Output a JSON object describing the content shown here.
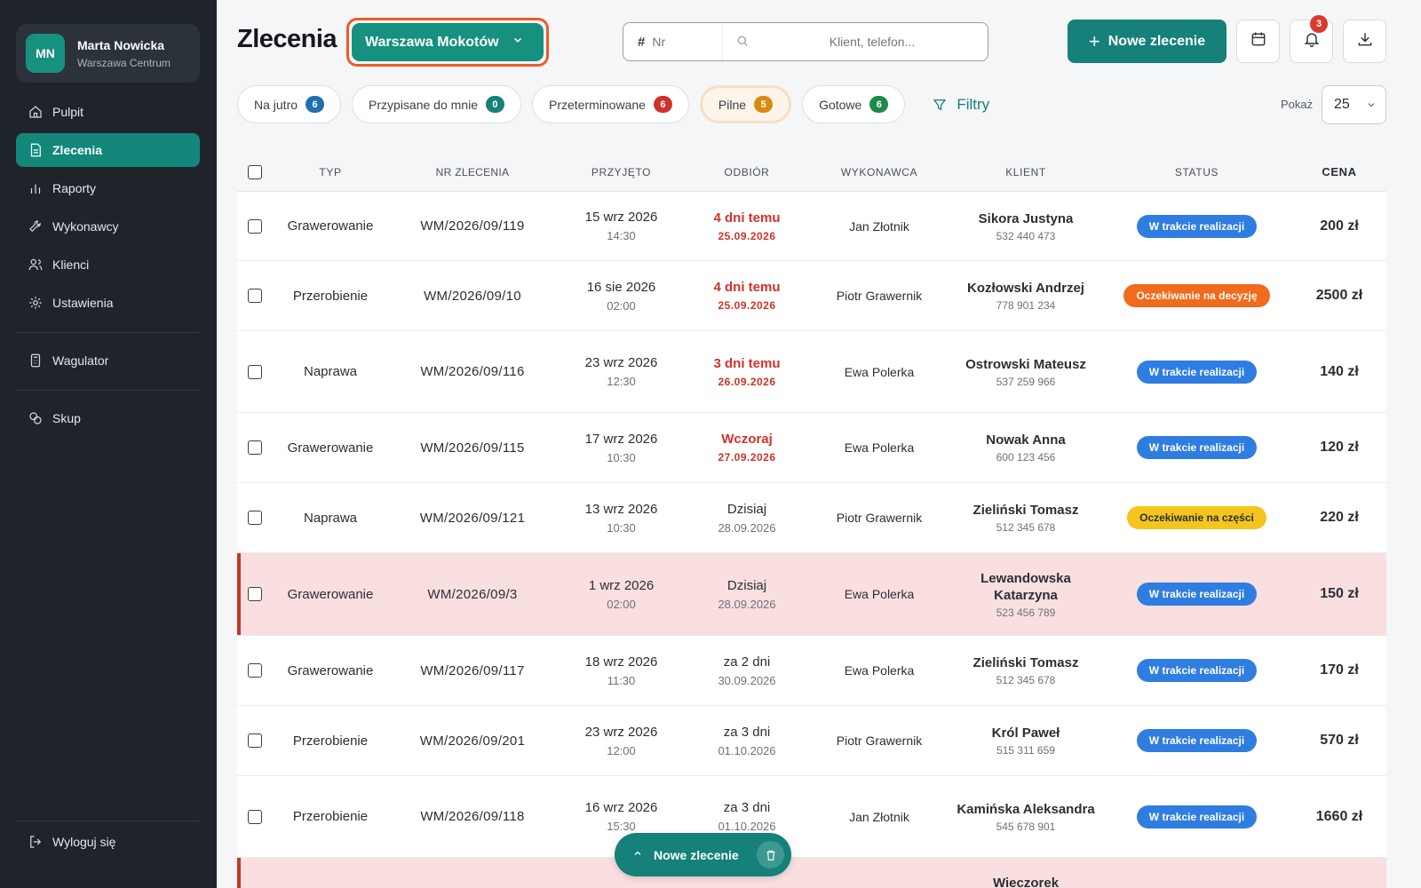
{
  "user": {
    "initials": "MN",
    "name": "Marta Nowicka",
    "branch": "Warszawa Centrum"
  },
  "nav": [
    {
      "label": "Pulpit",
      "icon": "home-icon",
      "active": false
    },
    {
      "label": "Zlecenia",
      "icon": "document-icon",
      "active": true
    },
    {
      "label": "Raporty",
      "icon": "bar-chart-icon",
      "active": false
    },
    {
      "label": "Wykonawcy",
      "icon": "wrench-icon",
      "active": false
    },
    {
      "label": "Klienci",
      "icon": "users-icon",
      "active": false
    },
    {
      "label": "Ustawienia",
      "icon": "gear-icon",
      "active": false
    }
  ],
  "nav_extra": [
    {
      "label": "Wagulator",
      "icon": "calculator-icon"
    },
    {
      "label": "Skup",
      "icon": "coins-icon"
    }
  ],
  "logout_label": "Wyloguj się",
  "header": {
    "title": "Zlecenia",
    "branch_select": "Warszawa Mokotów",
    "search_nr_symbol": "#",
    "search_nr_placeholder": "Nr",
    "search_client_placeholder": "Klient, telefon...",
    "new_order_label": "Nowe zlecenie",
    "notifications_count": "3"
  },
  "chips": [
    {
      "label": "Na jutro",
      "count": "6",
      "color": "#1f6fb2",
      "active": false
    },
    {
      "label": "Przypisane do mnie",
      "count": "0",
      "color": "#16807a",
      "active": false
    },
    {
      "label": "Przeterminowane",
      "count": "6",
      "color": "#d0322a",
      "active": false
    },
    {
      "label": "Pilne",
      "count": "5",
      "color": "#d98a12",
      "active": true
    },
    {
      "label": "Gotowe",
      "count": "6",
      "color": "#1d8a4a",
      "active": false
    }
  ],
  "filters_label": "Filtry",
  "show_label": "Pokaż",
  "show_value": "25",
  "table": {
    "columns": {
      "type": "TYP",
      "nr": "NR ZLECENIA",
      "received": "PRZYJĘTO",
      "pickup": "ODBIÓR",
      "executor": "WYKONAWCA",
      "client": "KLIENT",
      "status": "STATUS",
      "price": "CENA"
    },
    "rows": [
      {
        "type": "Grawerowanie",
        "nr": "WM/2026/09/119",
        "rec_date": "15 wrz 2026",
        "rec_time": "14:30",
        "pick_main": "4 dni temu",
        "pick_date": "25.09.2026",
        "late": true,
        "executor": "Jan Złotnik",
        "client": "Sikora Justyna",
        "phone": "532 440 473",
        "status": "W trakcie realizacji",
        "status_color": "#2f7de1",
        "price": "200 zł",
        "highlight": false,
        "height": 78
      },
      {
        "type": "Przerobienie",
        "nr": "WM/2026/09/10",
        "rec_date": "16 sie 2026",
        "rec_time": "02:00",
        "pick_main": "4 dni temu",
        "pick_date": "25.09.2026",
        "late": true,
        "executor": "Piotr Grawernik",
        "client": "Kozłowski Andrzej",
        "phone": "778 901 234",
        "status": "Oczekiwanie na decyzję",
        "status_color": "#f26a1b",
        "price": "2500 zł",
        "highlight": false,
        "height": 79
      },
      {
        "type": "Naprawa",
        "nr": "WM/2026/09/116",
        "rec_date": "23 wrz 2026",
        "rec_time": "12:30",
        "pick_main": "3 dni temu",
        "pick_date": "26.09.2026",
        "late": true,
        "executor": "Ewa Polerka",
        "client": "Ostrowski Mateusz",
        "phone": "537 259 966",
        "status": "W trakcie realizacji",
        "status_color": "#2f7de1",
        "price": "140 zł",
        "highlight": false,
        "height": 92
      },
      {
        "type": "Grawerowanie",
        "nr": "WM/2026/09/115",
        "rec_date": "17 wrz 2026",
        "rec_time": "10:30",
        "pick_main": "Wczoraj",
        "pick_date": "27.09.2026",
        "late": true,
        "executor": "Ewa Polerka",
        "client": "Nowak Anna",
        "phone": "600 123 456",
        "status": "W trakcie realizacji",
        "status_color": "#2f7de1",
        "price": "120 zł",
        "highlight": false,
        "height": 79
      },
      {
        "type": "Naprawa",
        "nr": "WM/2026/09/121",
        "rec_date": "13 wrz 2026",
        "rec_time": "10:30",
        "pick_main": "Dzisiaj",
        "pick_date": "28.09.2026",
        "late": false,
        "executor": "Piotr Grawernik",
        "client": "Zieliński Tomasz",
        "phone": "512 345 678",
        "status": "Oczekiwanie na części",
        "status_color": "#f4c51c",
        "status_text_color": "#2a2f35",
        "price": "220 zł",
        "highlight": false,
        "height": 79
      },
      {
        "type": "Grawerowanie",
        "nr": "WM/2026/09/3",
        "rec_date": "1 wrz 2026",
        "rec_time": "02:00",
        "pick_main": "Dzisiaj",
        "pick_date": "28.09.2026",
        "late": false,
        "executor": "Ewa Polerka",
        "client": "Lewandowska Katarzyna",
        "phone": "523 456 789",
        "status": "W trakcie realizacji",
        "status_color": "#2f7de1",
        "price": "150 zł",
        "highlight": true,
        "height": 93
      },
      {
        "type": "Grawerowanie",
        "nr": "WM/2026/09/117",
        "rec_date": "18 wrz 2026",
        "rec_time": "11:30",
        "pick_main": "za 2 dni",
        "pick_date": "30.09.2026",
        "late": false,
        "executor": "Ewa Polerka",
        "client": "Zieliński Tomasz",
        "phone": "512 345 678",
        "status": "W trakcie realizacji",
        "status_color": "#2f7de1",
        "price": "170 zł",
        "highlight": false,
        "height": 79
      },
      {
        "type": "Przerobienie",
        "nr": "WM/2026/09/201",
        "rec_date": "23 wrz 2026",
        "rec_time": "12:00",
        "pick_main": "za 3 dni",
        "pick_date": "01.10.2026",
        "late": false,
        "executor": "Piotr Grawernik",
        "client": "Król Paweł",
        "phone": "515 311 659",
        "status": "W trakcie realizacji",
        "status_color": "#2f7de1",
        "price": "570 zł",
        "highlight": false,
        "height": 79
      },
      {
        "type": "Przerobienie",
        "nr": "WM/2026/09/118",
        "rec_date": "16 wrz 2026",
        "rec_time": "15:30",
        "pick_main": "za 3 dni",
        "pick_date": "01.10.2026",
        "late": false,
        "executor": "Jan Złotnik",
        "client": "Kamińska Aleksandra",
        "phone": "545 678 901",
        "status": "W trakcie realizacji",
        "status_color": "#2f7de1",
        "price": "1660 zł",
        "highlight": false,
        "height": 92
      },
      {
        "type": "",
        "nr": "",
        "rec_date": "",
        "rec_time": "",
        "pick_main": "",
        "pick_date": "",
        "late": false,
        "executor": "",
        "client": "Wieczorek",
        "phone": "",
        "status": "",
        "status_color": "#2f7de1",
        "price": "",
        "highlight": true,
        "height": 60
      }
    ]
  },
  "fab": {
    "label": "Nowe zlecenie"
  }
}
